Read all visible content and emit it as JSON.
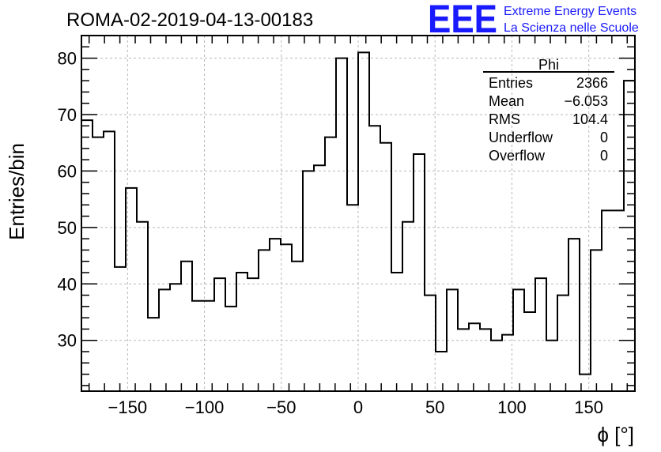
{
  "title": "ROMA-02-2019-04-13-00183",
  "logo": {
    "mark": "EEE",
    "line1": "Extreme Energy Events",
    "line2": "La Scienza nelle Scuole",
    "color": "#1a1aff"
  },
  "stats": {
    "name": "Phi",
    "rows": [
      {
        "label": "Entries",
        "value": "2366"
      },
      {
        "label": "Mean",
        "value": "−6.053"
      },
      {
        "label": "RMS",
        "value": "104.4"
      },
      {
        "label": "Underflow",
        "value": "0"
      },
      {
        "label": "Overflow",
        "value": "0"
      }
    ]
  },
  "chart_data": {
    "type": "histogram",
    "xlabel": "ϕ [°]",
    "ylabel": "Entries/bin",
    "xlim": [
      -180,
      180
    ],
    "ylim": [
      21,
      84
    ],
    "bin_width": 7.2,
    "x_ticks": [
      -150,
      -100,
      -50,
      0,
      50,
      100,
      150
    ],
    "x_tick_labels": [
      "−150",
      "−100",
      "−50",
      "0",
      "50",
      "100",
      "150"
    ],
    "y_ticks": [
      30,
      40,
      50,
      60,
      70,
      80
    ],
    "y_tick_labels": [
      "30",
      "40",
      "50",
      "60",
      "70",
      "80"
    ],
    "grid": true,
    "line_color": "#000000",
    "counts": [
      69,
      66,
      67,
      43,
      57,
      51,
      34,
      39,
      40,
      44,
      37,
      37,
      41,
      36,
      42,
      41,
      46,
      48,
      47,
      44,
      60,
      61,
      66,
      80,
      54,
      81,
      68,
      65,
      42,
      51,
      63,
      38,
      28,
      39,
      32,
      33,
      32,
      30,
      31,
      39,
      35,
      41,
      30,
      38,
      48,
      24,
      46,
      53,
      53,
      76
    ]
  }
}
